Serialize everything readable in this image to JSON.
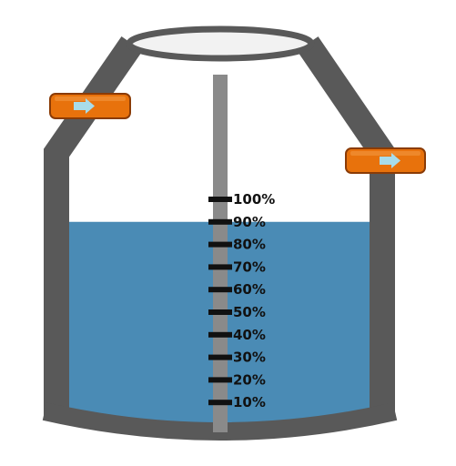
{
  "tank": {
    "fill_percent": 90,
    "water_color": "#4a8bb5",
    "wall_color": "#595959",
    "lid_color": "#f2f2f2",
    "gauge_rod_color": "#8a8a8a",
    "tick_color": "#111111"
  },
  "gauge": {
    "levels": [
      {
        "label": "100%"
      },
      {
        "label": "90%"
      },
      {
        "label": "80%"
      },
      {
        "label": "70%"
      },
      {
        "label": "60%"
      },
      {
        "label": "50%"
      },
      {
        "label": "40%"
      },
      {
        "label": "30%"
      },
      {
        "label": "20%"
      },
      {
        "label": "10%"
      }
    ]
  },
  "pipes": {
    "inlet": {
      "icon": "arrow-right-icon",
      "color": "#e8720c",
      "arrow_color": "#a8dcea"
    },
    "outlet": {
      "icon": "arrow-right-icon",
      "color": "#e8720c",
      "arrow_color": "#a8dcea"
    }
  }
}
